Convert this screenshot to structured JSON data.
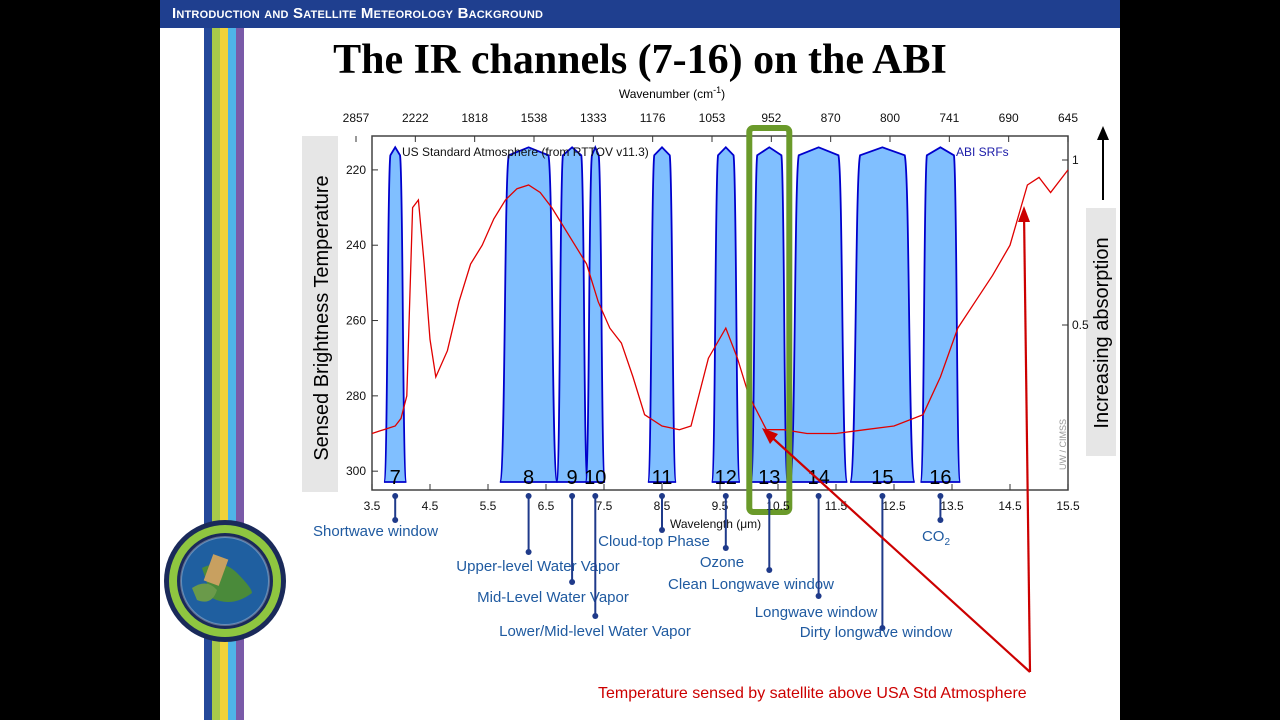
{
  "header": {
    "title": "Introduction and Satellite Meteorology Background"
  },
  "slide": {
    "title": "The IR channels (7-16) on the ABI"
  },
  "chart_data": {
    "type": "area",
    "top_axis_label": "Wavenumber (cm",
    "top_axis_sup": "-1",
    "top_axis_close": ")",
    "top_ticks": [
      "2857",
      "2222",
      "1818",
      "1538",
      "1333",
      "1176",
      "1053",
      "952",
      "870",
      "800",
      "741",
      "690",
      "645"
    ],
    "xlabel": "Wavelength (μm)",
    "x_ticks": [
      3.5,
      4.5,
      5.5,
      6.5,
      7.5,
      8.5,
      9.5,
      10.5,
      11.5,
      12.5,
      13.5,
      14.5,
      15.5
    ],
    "xlim": [
      3.5,
      15.5
    ],
    "ylabel": "Sensed Brightness Temperature",
    "y_ticks": [
      220,
      240,
      260,
      280,
      300
    ],
    "ylim": [
      211,
      305
    ],
    "right_ticks": [
      "1",
      "0.5"
    ],
    "right_label": "Increasing absorption",
    "atmosphere_label": "US Standard Atmosphere (from RTTOV v11.3)",
    "srf_label": "ABI SRFs",
    "credit": "UW / CIMSS",
    "colors": {
      "srf_fill": "#80bfff",
      "srf_line": "#0000cc",
      "atmosphere": "#e00000",
      "highlight": "#6a9a2a",
      "label": "#1f5aa0",
      "annotation": "#cc0000"
    },
    "highlighted_channel": "13",
    "channels": [
      {
        "number": "7",
        "name": "Shortwave window",
        "center": 3.9,
        "width": 0.25
      },
      {
        "number": "8",
        "name": "Upper-level Water Vapor",
        "center": 6.2,
        "width": 0.8
      },
      {
        "number": "9",
        "name": "Mid-Level Water Vapor",
        "center": 6.95,
        "width": 0.4
      },
      {
        "number": "10",
        "name": "Lower/Mid-level Water Vapor",
        "center": 7.35,
        "width": 0.2
      },
      {
        "number": "11",
        "name": "Cloud-top Phase",
        "center": 8.5,
        "width": 0.35
      },
      {
        "number": "12",
        "name": "Ozone",
        "center": 9.6,
        "width": 0.35
      },
      {
        "number": "13",
        "name": "Clean Longwave window",
        "center": 10.35,
        "width": 0.5
      },
      {
        "number": "14",
        "name": "Longwave window",
        "center": 11.2,
        "width": 0.8
      },
      {
        "number": "15",
        "name": "Dirty longwave window",
        "center": 12.3,
        "width": 0.9
      },
      {
        "number": "16",
        "name": "CO",
        "name_sub": "2",
        "center": 13.3,
        "width": 0.55
      }
    ],
    "atmosphere_temperature": {
      "x": [
        3.5,
        3.7,
        3.9,
        4.0,
        4.1,
        4.2,
        4.3,
        4.4,
        4.5,
        4.6,
        4.8,
        5.0,
        5.2,
        5.4,
        5.6,
        5.8,
        6.0,
        6.2,
        6.4,
        6.6,
        6.8,
        7.0,
        7.2,
        7.4,
        7.6,
        7.8,
        8.0,
        8.2,
        8.5,
        8.8,
        9.0,
        9.3,
        9.6,
        9.8,
        10.0,
        10.3,
        10.6,
        11.0,
        11.5,
        12.0,
        12.5,
        13.0,
        13.3,
        13.6,
        13.9,
        14.2,
        14.5,
        14.8,
        15.0,
        15.2,
        15.5
      ],
      "y": [
        290,
        289,
        288,
        286,
        280,
        230,
        228,
        245,
        265,
        275,
        268,
        255,
        245,
        240,
        233,
        228,
        225,
        224,
        226,
        230,
        235,
        240,
        245,
        255,
        262,
        266,
        275,
        285,
        288,
        289,
        288,
        270,
        262,
        270,
        280,
        289,
        289,
        290,
        290,
        289,
        288,
        285,
        275,
        262,
        255,
        248,
        240,
        224,
        222,
        226,
        220
      ]
    },
    "annotation": "Temperature sensed by satellite above USA Std Atmosphere"
  }
}
